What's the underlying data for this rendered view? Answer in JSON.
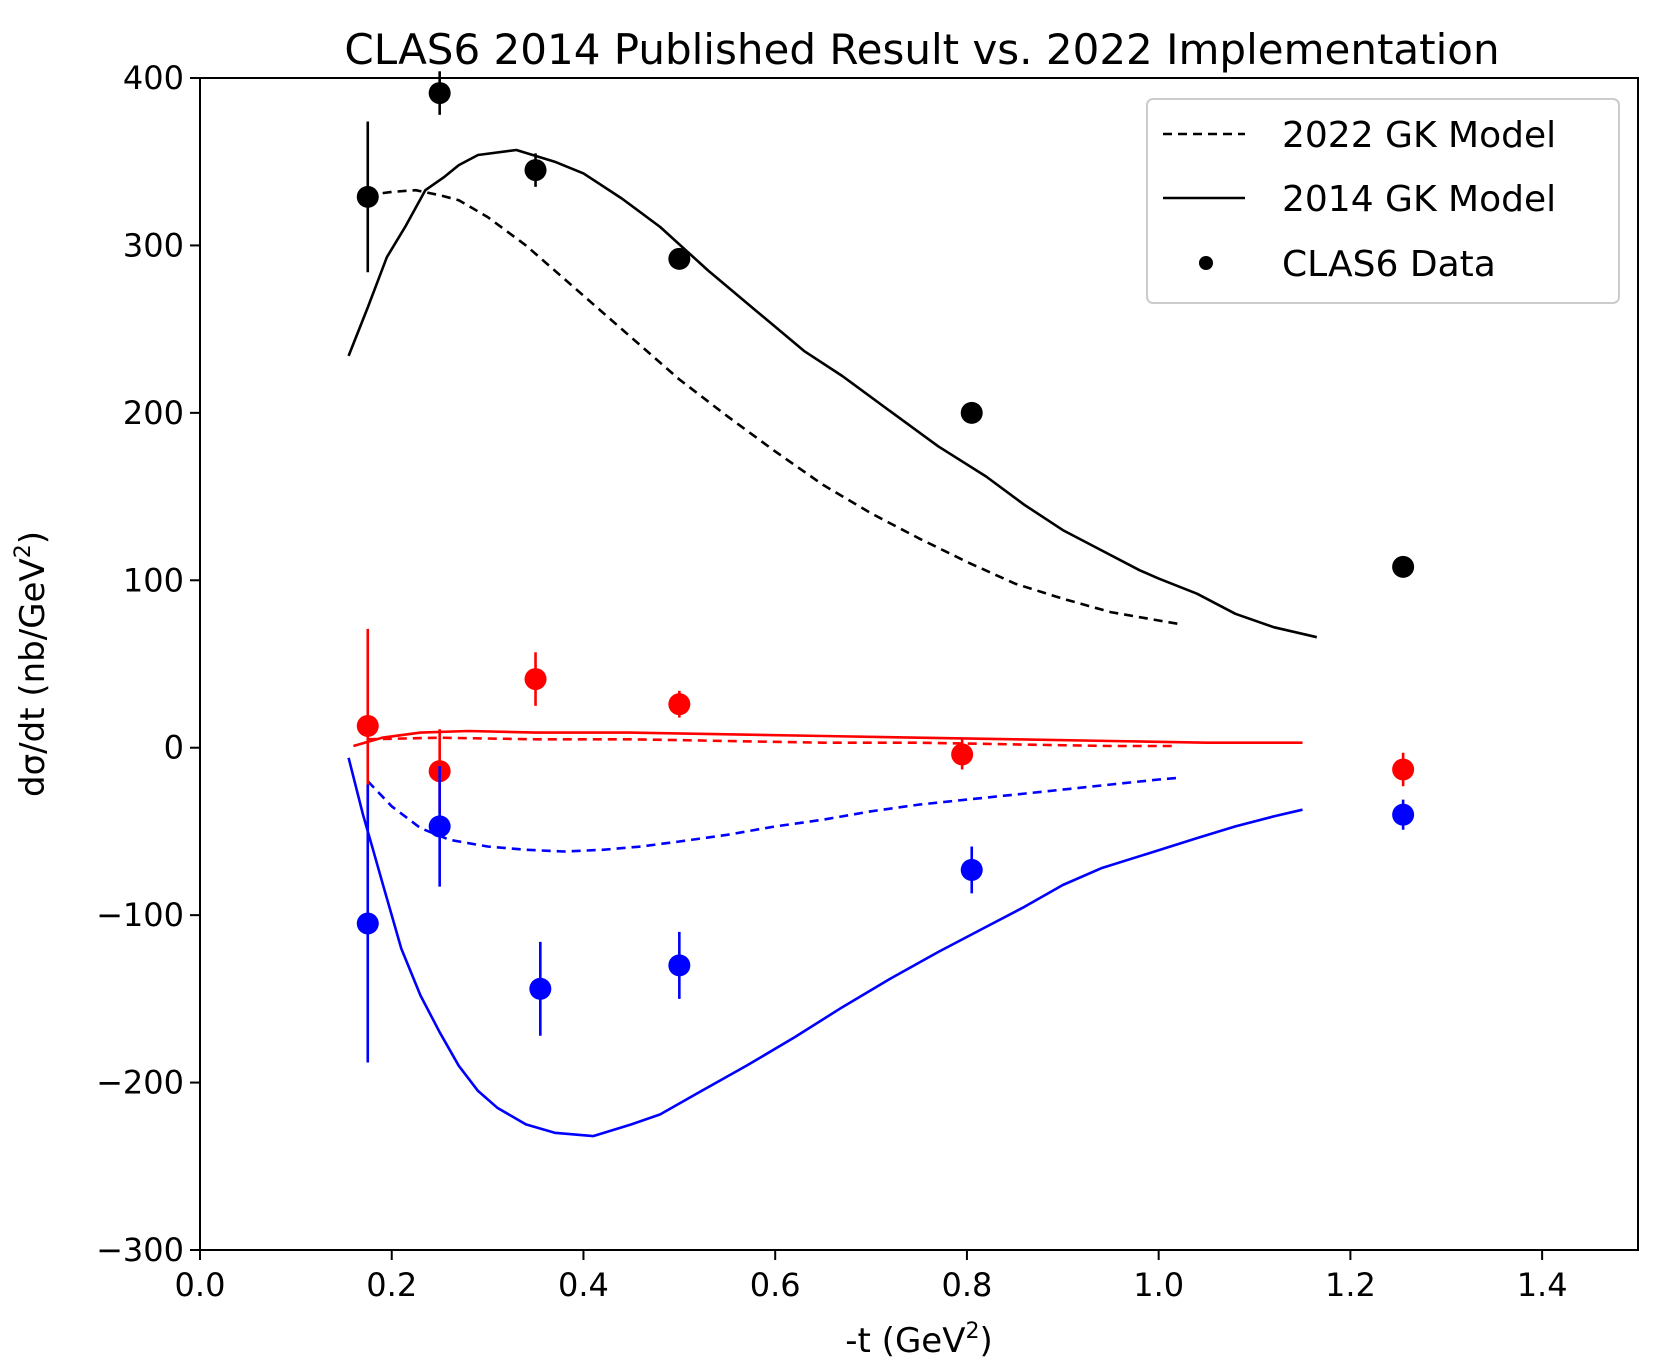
{
  "chart_data": {
    "type": "line",
    "title": "CLAS6 2014 Published Result vs. 2022 Implementation",
    "xlabel_main": "-t (GeV",
    "xlabel_sup": "2",
    "xlabel_end": ")",
    "ylabel_main": "dσ/dt (nb/GeV",
    "ylabel_sup": "2",
    "ylabel_end": ")",
    "xlim": [
      0.0,
      1.5
    ],
    "ylim": [
      -300,
      400
    ],
    "xticks": [
      0.0,
      0.2,
      0.4,
      0.6,
      0.8,
      1.0,
      1.2,
      1.4
    ],
    "xtick_labels": [
      "0.0",
      "0.2",
      "0.4",
      "0.6",
      "0.8",
      "1.0",
      "1.2",
      "1.4"
    ],
    "yticks": [
      -300,
      -200,
      -100,
      0,
      100,
      200,
      300,
      400
    ],
    "ytick_labels": [
      "−300",
      "−200",
      "−100",
      "0",
      "100",
      "200",
      "300",
      "400"
    ],
    "grid": false,
    "legend_position": "top-right",
    "legend": [
      {
        "label": "2022 GK Model",
        "style": "dashed"
      },
      {
        "label": "2014 GK Model",
        "style": "solid"
      },
      {
        "label": "CLAS6 Data",
        "style": "marker"
      }
    ],
    "colors": {
      "black": "#000000",
      "red": "#ff0000",
      "blue": "#0000ff"
    },
    "series": [
      {
        "color": "black",
        "style": "solid",
        "group": "2014",
        "x": [
          0.155,
          0.175,
          0.195,
          0.215,
          0.235,
          0.255,
          0.27,
          0.29,
          0.33,
          0.37,
          0.4,
          0.44,
          0.48,
          0.53,
          0.58,
          0.63,
          0.67,
          0.72,
          0.77,
          0.82,
          0.86,
          0.9,
          0.94,
          0.98,
          1.0,
          1.04,
          1.08,
          1.12,
          1.165
        ],
        "y": [
          234,
          263,
          293,
          312,
          333,
          341,
          348,
          354,
          357,
          350,
          343,
          328,
          311,
          285,
          261,
          237,
          222,
          201,
          180,
          162,
          145,
          130,
          118,
          106,
          101,
          92,
          80,
          72,
          66
        ]
      },
      {
        "color": "black",
        "style": "dashed",
        "group": "2022",
        "x": [
          0.175,
          0.2,
          0.225,
          0.25,
          0.27,
          0.3,
          0.34,
          0.38,
          0.42,
          0.46,
          0.5,
          0.55,
          0.6,
          0.65,
          0.7,
          0.75,
          0.8,
          0.85,
          0.9,
          0.95,
          1.0,
          1.02
        ],
        "y": [
          330,
          332,
          333,
          330,
          327,
          317,
          300,
          280,
          260,
          240,
          220,
          198,
          177,
          157,
          140,
          125,
          111,
          98,
          89,
          81,
          76,
          74
        ]
      },
      {
        "color": "red",
        "style": "solid",
        "group": "2014",
        "x": [
          0.16,
          0.19,
          0.23,
          0.28,
          0.35,
          0.45,
          0.55,
          0.65,
          0.75,
          0.85,
          0.95,
          1.05,
          1.1,
          1.15
        ],
        "y": [
          1,
          6,
          9,
          10,
          9,
          9,
          8,
          7,
          6,
          5,
          4,
          3,
          3,
          3
        ]
      },
      {
        "color": "red",
        "style": "dashed",
        "group": "2022",
        "x": [
          0.175,
          0.25,
          0.35,
          0.45,
          0.55,
          0.65,
          0.75,
          0.85,
          0.95,
          1.02
        ],
        "y": [
          5,
          6,
          5,
          5,
          4,
          3,
          3,
          2,
          1,
          1
        ]
      },
      {
        "color": "blue",
        "style": "solid",
        "group": "2014",
        "x": [
          0.155,
          0.17,
          0.18,
          0.19,
          0.2,
          0.21,
          0.23,
          0.25,
          0.27,
          0.29,
          0.31,
          0.34,
          0.37,
          0.41,
          0.45,
          0.48,
          0.52,
          0.57,
          0.62,
          0.67,
          0.72,
          0.77,
          0.82,
          0.86,
          0.9,
          0.94,
          0.99,
          1.04,
          1.08,
          1.12,
          1.15
        ],
        "y": [
          -6,
          -40,
          -60,
          -80,
          -100,
          -120,
          -148,
          -170,
          -190,
          -205,
          -215,
          -225,
          -230,
          -232,
          -225,
          -219,
          -206,
          -190,
          -173,
          -155,
          -138,
          -122,
          -107,
          -95,
          -82,
          -72,
          -63,
          -54,
          -47,
          -41,
          -37
        ]
      },
      {
        "color": "blue",
        "style": "dashed",
        "group": "2022",
        "x": [
          0.175,
          0.2,
          0.23,
          0.26,
          0.3,
          0.34,
          0.38,
          0.42,
          0.46,
          0.5,
          0.55,
          0.6,
          0.65,
          0.7,
          0.75,
          0.8,
          0.85,
          0.9,
          0.95,
          1.0,
          1.02
        ],
        "y": [
          -20,
          -35,
          -48,
          -55,
          -59,
          -61,
          -62,
          -61,
          -59,
          -56,
          -52,
          -47,
          -43,
          -38,
          -34,
          -31,
          -28,
          -25,
          -22,
          -19,
          -18
        ]
      }
    ],
    "points": [
      {
        "color": "black",
        "x": [
          0.175,
          0.25,
          0.35,
          0.5,
          0.805,
          1.255
        ],
        "y": [
          329,
          391,
          345,
          292,
          200,
          108
        ],
        "err": [
          45,
          13,
          10,
          4,
          3,
          5
        ]
      },
      {
        "color": "red",
        "x": [
          0.175,
          0.25,
          0.35,
          0.5,
          0.795,
          1.255
        ],
        "y": [
          13,
          -14,
          41,
          26,
          -4,
          -13
        ],
        "err": [
          58,
          25,
          16,
          8,
          9,
          10
        ]
      },
      {
        "color": "blue",
        "x": [
          0.175,
          0.25,
          0.355,
          0.5,
          0.805,
          1.255
        ],
        "y": [
          -105,
          -47,
          -144,
          -130,
          -73,
          -40
        ],
        "err": [
          83,
          36,
          28,
          20,
          14,
          9
        ]
      }
    ]
  }
}
